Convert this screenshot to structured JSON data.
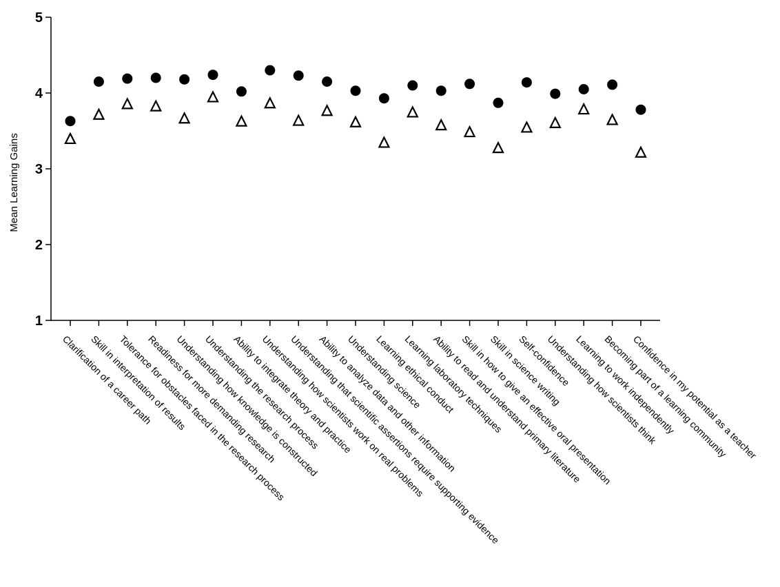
{
  "chart_data": {
    "type": "scatter",
    "title": "",
    "xlabel": "",
    "ylabel": "Mean Learning Gains",
    "ylim": [
      1,
      5
    ],
    "yticks": [
      1,
      2,
      3,
      4,
      5
    ],
    "grid": false,
    "categories": [
      "Clarification of a career path",
      "Skill in interpretation of results",
      "Tolerance for obstacles faced in the research process",
      "Readiness for more demanding research",
      "Understanding how knowledge is constructed",
      "Understanding the research process",
      "Ability to integrate theory and practice",
      "Understanding how scientists work on real problems",
      "Understanding that scientific assertions require supporting evidence",
      "Ability to analyze data and other information",
      "Understanding science",
      "Learning ethical conduct",
      "Learning laboratory techniques",
      "Ability to read and understand primary literature",
      "Skill in how to give an effective oral presentation",
      "Skill in science writing",
      "Self-confidence",
      "Understanding how scientists think",
      "Learning to work independently",
      "Becoming part of a learning community",
      "Confidence in my potential as a teacher"
    ],
    "series": [
      {
        "marker": "filled-circle",
        "values": [
          3.63,
          4.15,
          4.19,
          4.2,
          4.18,
          4.24,
          4.02,
          4.3,
          4.23,
          4.15,
          4.03,
          3.93,
          4.1,
          4.03,
          4.12,
          3.87,
          4.14,
          3.99,
          4.05,
          4.11,
          3.78
        ]
      },
      {
        "marker": "open-triangle",
        "values": [
          3.39,
          3.71,
          3.85,
          3.82,
          3.66,
          3.94,
          3.62,
          3.86,
          3.63,
          3.76,
          3.61,
          3.34,
          3.74,
          3.57,
          3.48,
          3.27,
          3.54,
          3.6,
          3.78,
          3.64,
          3.21
        ]
      }
    ]
  }
}
